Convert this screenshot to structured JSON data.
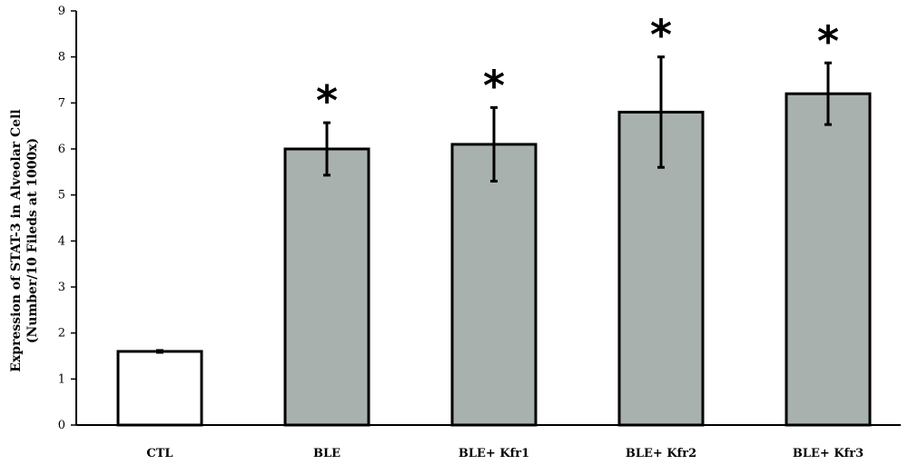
{
  "chart_data": {
    "type": "bar",
    "categories": [
      "CTL",
      "BLE",
      "BLE+ Kfr1",
      "BLE+ Kfr2",
      "BLE+ Kfr3"
    ],
    "values": [
      1.6,
      6.0,
      6.1,
      6.8,
      7.2
    ],
    "errors": [
      0.02,
      0.57,
      0.8,
      1.2,
      0.67
    ],
    "significance": [
      "",
      "*",
      "*",
      "*",
      "*"
    ],
    "bar_colors": [
      "#ffffff",
      "#a8b1ae",
      "#a8b1ae",
      "#a8b1ae",
      "#a8b1ae"
    ],
    "ylabel_line1": "Expression of STAT-3 in Alveolar Cell",
    "ylabel_line2": "(Number/10 Fileds at 1000x)",
    "xlabel": "",
    "ylim": [
      0,
      9
    ],
    "yticks": [
      "0",
      "1",
      "2",
      "3",
      "4",
      "5",
      "6",
      "7",
      "8",
      "9"
    ],
    "grid": false
  }
}
